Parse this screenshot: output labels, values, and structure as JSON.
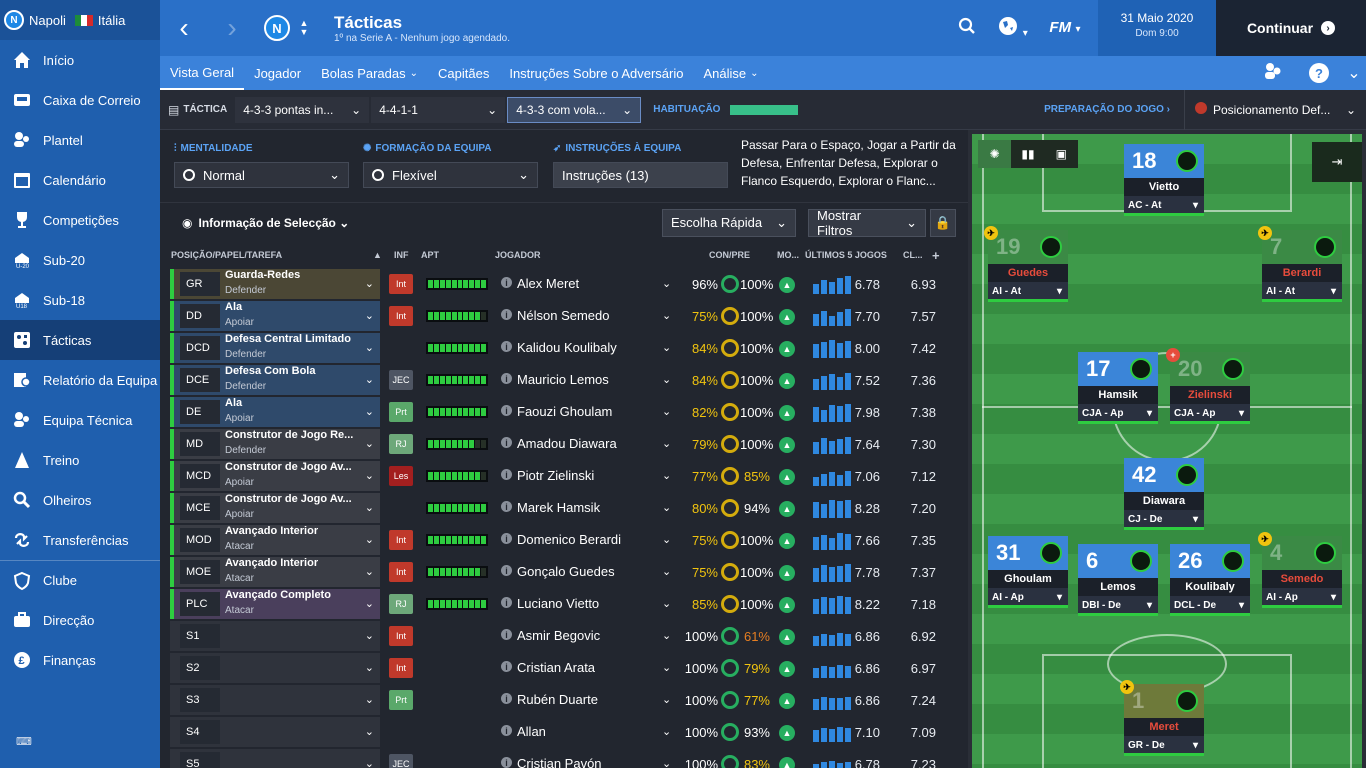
{
  "club": {
    "name": "Napoli",
    "badge_text": "N",
    "country": "Itália"
  },
  "sidebar": {
    "items": [
      {
        "label": "Início",
        "icon": "home-icon"
      },
      {
        "label": "Caixa de Correio",
        "icon": "inbox-icon"
      },
      {
        "label": "Plantel",
        "icon": "squad-icon"
      },
      {
        "label": "Calendário",
        "icon": "calendar-icon"
      },
      {
        "label": "Competições",
        "icon": "trophy-icon"
      },
      {
        "label": "Sub-20",
        "icon": "under20-icon"
      },
      {
        "label": "Sub-18",
        "icon": "under18-icon"
      },
      {
        "label": "Tácticas",
        "icon": "tactics-icon"
      },
      {
        "label": "Relatório da Equipa",
        "icon": "report-icon"
      },
      {
        "label": "Equipa Técnica",
        "icon": "staff-icon"
      },
      {
        "label": "Treino",
        "icon": "training-icon"
      },
      {
        "label": "Olheiros",
        "icon": "scouting-icon"
      },
      {
        "label": "Transferências",
        "icon": "transfers-icon"
      },
      {
        "label": "Clube",
        "icon": "club-icon"
      },
      {
        "label": "Direcção",
        "icon": "board-icon"
      },
      {
        "label": "Finanças",
        "icon": "finances-icon"
      }
    ]
  },
  "header": {
    "title": "Tácticas",
    "subtitle": "1º na Serie A - Nenhum jogo agendado.",
    "date": "31 Maio 2020",
    "time": "Dom 9:00",
    "continue_label": "Continuar"
  },
  "subnav": [
    "Vista Geral",
    "Jogador",
    "Bolas Paradas",
    "Capitães",
    "Instruções Sobre o Adversário",
    "Análise"
  ],
  "tactic_bar": {
    "label": "TÁCTICA",
    "slots": [
      "4-3-3 pontas in...",
      "4-4-1-1",
      "4-3-3 com vola..."
    ],
    "familiarity_label": "HABITUAÇÃO",
    "familiarity": 1.0,
    "prep_label": "PREPARAÇÃO DO JOGO ›",
    "position": "Posicionamento Def..."
  },
  "controls": {
    "mentality_label": "MENTALIDADE",
    "mentality": "Normal",
    "formation_label": "FORMAÇÃO DA EQUIPA",
    "formation": "Flexível",
    "instructions_label": "INSTRUÇÕES À EQUIPA",
    "instructions": "Instruções (13)",
    "instructions_text": "Passar Para o Espaço, Jogar a Partir da Defesa, Enfrentar Defesa, Explorar o Flanco Esquerdo, Explorar o Flanc..."
  },
  "selection": {
    "info_label": "Informação de Selecção",
    "quick_pick": "Escolha Rápida",
    "filters": "Mostrar Filtros"
  },
  "table": {
    "headers": [
      "POSIÇÃO/PAPEL/TAREFA",
      "INF",
      "APT",
      "JOGADOR",
      "CON/PRE",
      "MO...",
      "ÚLTIMOS 5 JOGOS",
      "CL..."
    ],
    "rows": [
      {
        "code": "GR",
        "role": "Guarda-Redes",
        "duty": "Defender",
        "inf": "Int",
        "apt": 10,
        "player": "Alex Meret",
        "con": "96%",
        "pre": "100%",
        "avg": "6.78",
        "cl": "6.93"
      },
      {
        "code": "DD",
        "role": "Ala",
        "duty": "Apoiar",
        "inf": "Int",
        "apt": 9,
        "player": "Nélson Semedo",
        "con": "75%",
        "pre": "100%",
        "avg": "7.70",
        "cl": "7.57"
      },
      {
        "code": "DCD",
        "role": "Defesa Central Limitado",
        "duty": "Defender",
        "inf": "",
        "apt": 10,
        "player": "Kalidou Koulibaly",
        "con": "84%",
        "pre": "100%",
        "avg": "8.00",
        "cl": "7.42"
      },
      {
        "code": "DCE",
        "role": "Defesa Com Bola",
        "duty": "Defender",
        "inf": "JEC",
        "apt": 10,
        "player": "Mauricio Lemos",
        "con": "84%",
        "pre": "100%",
        "avg": "7.52",
        "cl": "7.36"
      },
      {
        "code": "DE",
        "role": "Ala",
        "duty": "Apoiar",
        "inf": "Prt",
        "apt": 10,
        "player": "Faouzi Ghoulam",
        "con": "82%",
        "pre": "100%",
        "avg": "7.98",
        "cl": "7.38"
      },
      {
        "code": "MD",
        "role": "Construtor de Jogo Re...",
        "duty": "Defender",
        "inf": "RJ",
        "apt": 8,
        "player": "Amadou Diawara",
        "con": "79%",
        "pre": "100%",
        "avg": "7.64",
        "cl": "7.30"
      },
      {
        "code": "MCD",
        "role": "Construtor de Jogo Av...",
        "duty": "Apoiar",
        "inf": "Les",
        "apt": 9,
        "player": "Piotr Zielinski",
        "con": "77%",
        "pre": "85%",
        "avg": "7.06",
        "cl": "7.12"
      },
      {
        "code": "MCE",
        "role": "Construtor de Jogo Av...",
        "duty": "Apoiar",
        "inf": "",
        "apt": 10,
        "player": "Marek Hamsik",
        "con": "80%",
        "pre": "94%",
        "avg": "8.28",
        "cl": "7.20"
      },
      {
        "code": "MOD",
        "role": "Avançado Interior",
        "duty": "Atacar",
        "inf": "Int",
        "apt": 10,
        "player": "Domenico Berardi",
        "con": "75%",
        "pre": "100%",
        "avg": "7.66",
        "cl": "7.35"
      },
      {
        "code": "MOE",
        "role": "Avançado Interior",
        "duty": "Atacar",
        "inf": "Int",
        "apt": 9,
        "player": "Gonçalo Guedes",
        "con": "75%",
        "pre": "100%",
        "avg": "7.78",
        "cl": "7.37"
      },
      {
        "code": "PLC",
        "role": "Avançado Completo",
        "duty": "Atacar",
        "inf": "RJ",
        "apt": 10,
        "player": "Luciano Vietto",
        "con": "85%",
        "pre": "100%",
        "avg": "8.22",
        "cl": "7.18"
      },
      {
        "code": "S1",
        "role": "",
        "duty": "",
        "inf": "Int",
        "apt": 0,
        "player": "Asmir Begovic",
        "con": "100%",
        "pre": "61%",
        "avg": "6.86",
        "cl": "6.92"
      },
      {
        "code": "S2",
        "role": "",
        "duty": "",
        "inf": "Int",
        "apt": 0,
        "player": "Cristian Arata",
        "con": "100%",
        "pre": "79%",
        "avg": "6.86",
        "cl": "6.97"
      },
      {
        "code": "S3",
        "role": "",
        "duty": "",
        "inf": "Prt",
        "apt": 0,
        "player": "Rubén Duarte",
        "con": "100%",
        "pre": "77%",
        "avg": "6.86",
        "cl": "7.24"
      },
      {
        "code": "S4",
        "role": "",
        "duty": "",
        "inf": "",
        "apt": 0,
        "player": "Allan",
        "con": "100%",
        "pre": "93%",
        "avg": "7.10",
        "cl": "7.09"
      },
      {
        "code": "S5",
        "role": "",
        "duty": "",
        "inf": "JEC",
        "apt": 0,
        "player": "Cristian Pavón",
        "con": "100%",
        "pre": "83%",
        "avg": "6.78",
        "cl": "7.23"
      }
    ]
  },
  "pitch": [
    {
      "num": "18",
      "name": "Vietto",
      "role": "AC - At",
      "style": "blue",
      "badge": ""
    },
    {
      "num": "19",
      "name": "Guedes",
      "role": "AI - At",
      "style": "red",
      "badge": "plane"
    },
    {
      "num": "7",
      "name": "Berardi",
      "role": "AI - At",
      "style": "red",
      "badge": "plane"
    },
    {
      "num": "17",
      "name": "Hamsik",
      "role": "CJA - Ap",
      "style": "blue",
      "badge": ""
    },
    {
      "num": "20",
      "name": "Zielinski",
      "role": "CJA - Ap",
      "style": "red",
      "badge": "plus"
    },
    {
      "num": "42",
      "name": "Diawara",
      "role": "CJ - De",
      "style": "blue",
      "badge": ""
    },
    {
      "num": "31",
      "name": "Ghoulam",
      "role": "AI - Ap",
      "style": "blue",
      "badge": ""
    },
    {
      "num": "6",
      "name": "Lemos",
      "role": "DBI - De",
      "style": "blue",
      "badge": ""
    },
    {
      "num": "26",
      "name": "Koulibaly",
      "role": "DCL - De",
      "style": "blue",
      "badge": ""
    },
    {
      "num": "4",
      "name": "Semedo",
      "role": "AI - Ap",
      "style": "red",
      "badge": "plane"
    },
    {
      "num": "1",
      "name": "Meret",
      "role": "GR - De",
      "style": "gk",
      "badge": "plane"
    }
  ],
  "colors": {
    "accent": "#2a70c8",
    "sidebar": "#1f5fae",
    "green": "#2ecc40"
  }
}
